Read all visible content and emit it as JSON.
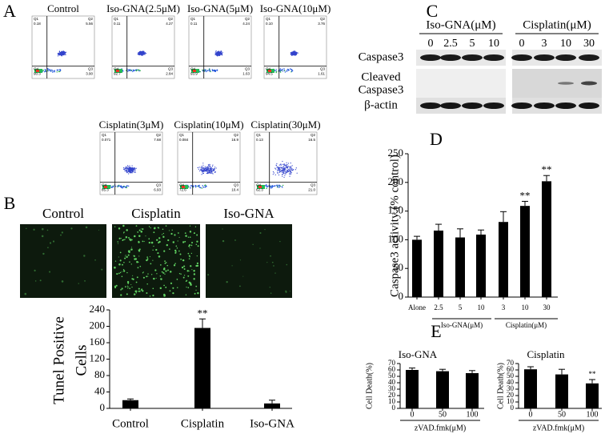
{
  "panel_labels": [
    "A",
    "B",
    "C",
    "D",
    "E"
  ],
  "flow": {
    "plots": [
      {
        "title": "Control",
        "quadrants": [
          {
            "name": "Q1",
            "value": "0.18"
          },
          {
            "name": "Q2",
            "value": "5.56"
          },
          {
            "name": "Q3",
            "value": "3.90"
          },
          {
            "name": "Q4",
            "value": "90.3"
          }
        ]
      },
      {
        "title": "Iso-GNA(2.5μM)",
        "quadrants": [
          {
            "name": "Q1",
            "value": "0.11"
          },
          {
            "name": "Q2",
            "value": "4.27"
          },
          {
            "name": "Q3",
            "value": "2.84"
          },
          {
            "name": "Q4",
            "value": "92.7"
          }
        ]
      },
      {
        "title": "Iso-GNA(5μM)",
        "quadrants": [
          {
            "name": "Q1",
            "value": "0.11"
          },
          {
            "name": "Q2",
            "value": "4.24"
          },
          {
            "name": "Q3",
            "value": "1.63"
          },
          {
            "name": "Q4",
            "value": "93.9"
          }
        ]
      },
      {
        "title": "Iso-GNA(10μM)",
        "quadrants": [
          {
            "name": "Q1",
            "value": "0.10"
          },
          {
            "name": "Q2",
            "value": "3.76"
          },
          {
            "name": "Q3",
            "value": "1.61"
          },
          {
            "name": "Q4",
            "value": "94.5"
          }
        ]
      },
      {
        "title": "Cisplatin(3μM)",
        "quadrants": [
          {
            "name": "Q1",
            "value": "0.071"
          },
          {
            "name": "Q2",
            "value": "7.68"
          },
          {
            "name": "Q3",
            "value": "6.93"
          },
          {
            "name": "Q4",
            "value": "85.3"
          }
        ]
      },
      {
        "title": "Cisplatin(10μM)",
        "quadrants": [
          {
            "name": "Q1",
            "value": "0.084"
          },
          {
            "name": "Q2",
            "value": "16.9"
          },
          {
            "name": "Q3",
            "value": "10.4"
          },
          {
            "name": "Q4",
            "value": "72.6"
          }
        ]
      },
      {
        "title": "Cisplatin(30μM)",
        "quadrants": [
          {
            "name": "Q1",
            "value": "0.13"
          },
          {
            "name": "Q2",
            "value": "16.5"
          },
          {
            "name": "Q3",
            "value": "21.0"
          },
          {
            "name": "Q4",
            "value": "62.3"
          }
        ]
      }
    ]
  },
  "blot": {
    "groups": [
      {
        "label": "Iso-GNA(μM)",
        "doses": [
          "0",
          "2.5",
          "5",
          "10"
        ]
      },
      {
        "label": "Cisplatin(μM)",
        "doses": [
          "0",
          "3",
          "10",
          "30"
        ]
      }
    ],
    "rows": [
      {
        "lines": [
          "Caspase3"
        ]
      },
      {
        "lines": [
          "Cleaved",
          "Caspase3"
        ]
      },
      {
        "lines": [
          "β-actin"
        ]
      }
    ]
  },
  "tunel_images": [
    "Control",
    "Cisplatin",
    "Iso-GNA"
  ],
  "chart_data": [
    {
      "type": "bar",
      "ylabel": [
        "Tunel Positive",
        "Cells"
      ],
      "categories": [
        "Control",
        "Cisplatin",
        "Iso-GNA"
      ],
      "values": [
        20,
        196,
        12
      ],
      "errors": [
        3,
        22,
        8
      ],
      "significance": [
        null,
        "**",
        null
      ],
      "ylim": [
        0,
        240
      ],
      "yticks": [
        0,
        40,
        80,
        120,
        160,
        200,
        240
      ],
      "color": "#000000"
    },
    {
      "type": "bar",
      "ylabel": [
        "Caspase3 activity (% control)"
      ],
      "categories": [
        "Alone",
        "2.5",
        "5",
        "10",
        "3",
        "10",
        "30"
      ],
      "groups": [
        "Iso-GNA(μM)",
        "Cisplatin(μM)"
      ],
      "values": [
        100,
        116,
        104,
        109,
        131,
        159,
        202
      ],
      "errors": [
        6,
        11,
        15,
        8,
        18,
        8,
        10
      ],
      "significance": [
        null,
        null,
        null,
        null,
        null,
        "**",
        "**"
      ],
      "ylim": [
        0,
        250
      ],
      "yticks": [
        0,
        50,
        100,
        150,
        200,
        250
      ],
      "color": "#000000"
    },
    {
      "type": "bar",
      "title": "Iso-GNA",
      "ylabel": [
        "Cell Death(%)"
      ],
      "xlabel": "zVAD.fmk(μM)",
      "categories": [
        "0",
        "50",
        "100"
      ],
      "values": [
        60,
        58,
        55
      ],
      "errors": [
        3,
        3,
        4
      ],
      "significance": [
        null,
        null,
        null
      ],
      "ylim": [
        0,
        70
      ],
      "yticks": [
        0,
        10,
        20,
        30,
        40,
        50,
        60,
        70
      ],
      "color": "#000000"
    },
    {
      "type": "bar",
      "title": "Cisplatin",
      "ylabel": [
        "Cell Death(%)"
      ],
      "xlabel": "zVAD.fmk(μM)",
      "categories": [
        "0",
        "50",
        "100"
      ],
      "values": [
        61,
        53,
        39
      ],
      "errors": [
        4,
        8,
        6
      ],
      "significance": [
        null,
        null,
        "**"
      ],
      "ylim": [
        0,
        70
      ],
      "yticks": [
        0,
        10,
        20,
        30,
        40,
        50,
        60,
        70
      ],
      "color": "#000000"
    }
  ]
}
